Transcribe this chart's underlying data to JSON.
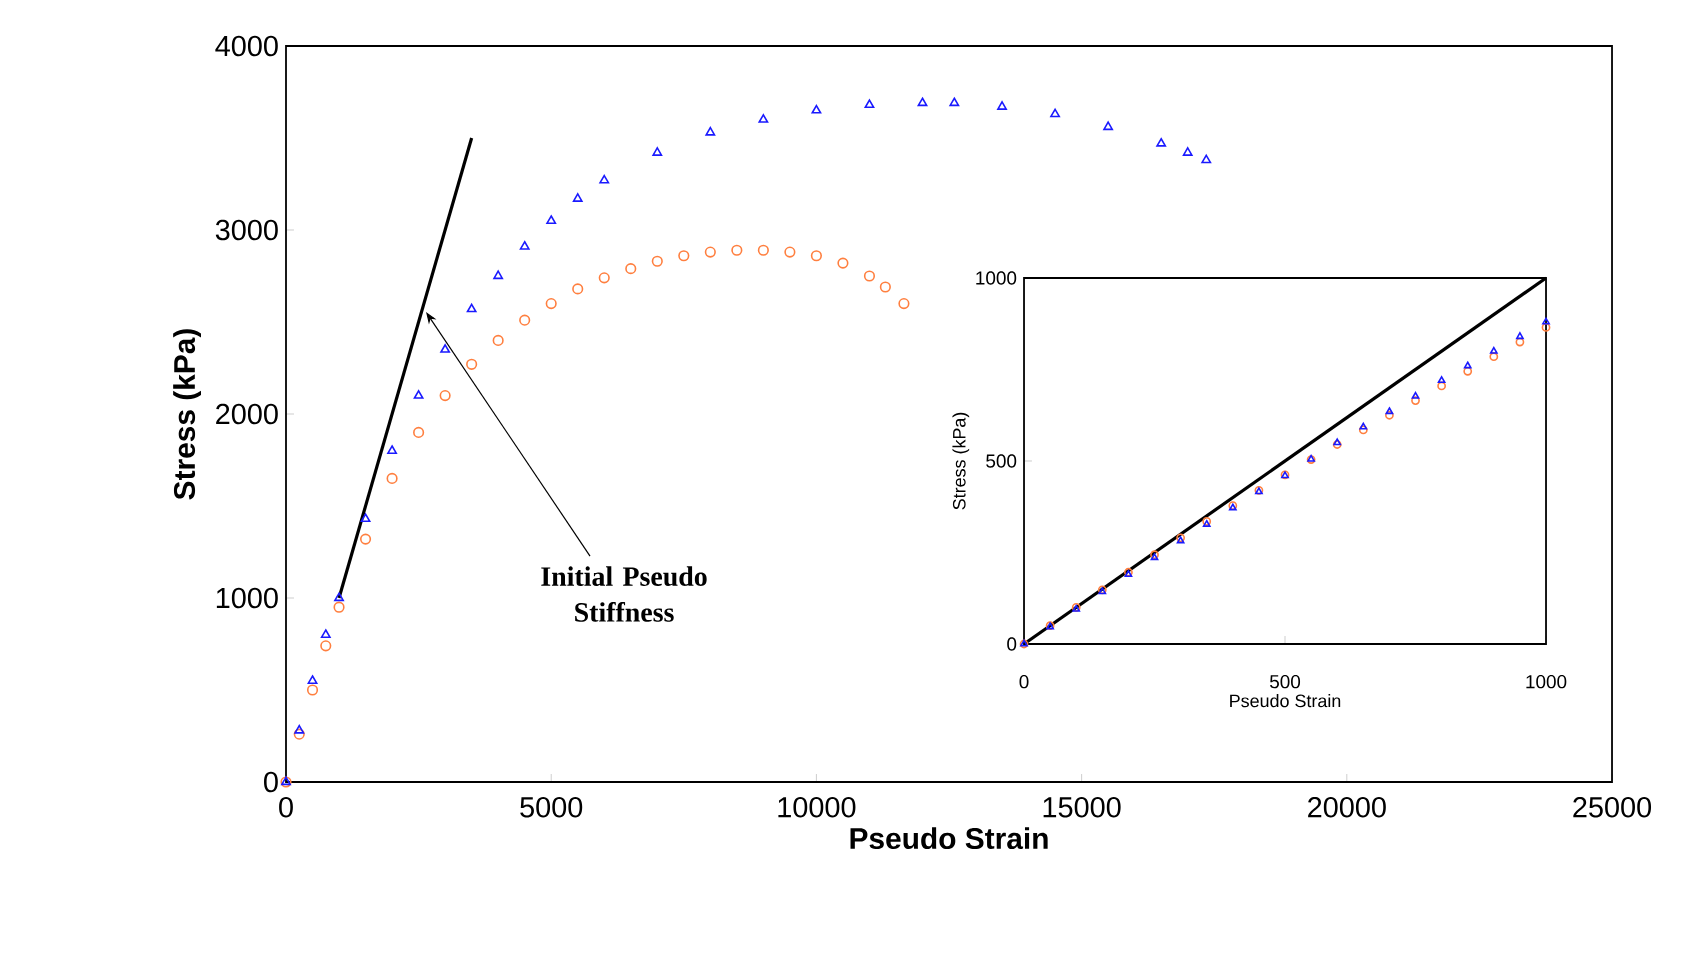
{
  "chart_data": [
    {
      "type": "scatter",
      "xlabel": "Pseudo Strain",
      "ylabel": "Stress (kPa)",
      "xlim": [
        0,
        25000
      ],
      "ylim": [
        0,
        4000
      ],
      "xticks": [
        0,
        5000,
        10000,
        15000,
        20000,
        25000
      ],
      "yticks": [
        0,
        1000,
        2000,
        3000,
        4000
      ],
      "annotations": [
        {
          "text": "Initial Pseudo Stiffness",
          "x": 2640,
          "y": 2554
        }
      ],
      "series": [
        {
          "type": "line",
          "color": "#000000",
          "marker": "none",
          "x": [
            1000,
            3500
          ],
          "values": [
            1000,
            3500
          ]
        },
        {
          "color": "#ff7f3f",
          "marker": "circle",
          "x": [
            0,
            250,
            500,
            750,
            1000,
            1500,
            2000,
            2500,
            3000,
            3500,
            4000,
            4500,
            5000,
            5500,
            6000,
            6500,
            7000,
            7500,
            8000,
            8500,
            9000,
            9500,
            10000,
            10500,
            11000,
            11300,
            11650
          ],
          "values": [
            0,
            260,
            500,
            740,
            950,
            1320,
            1650,
            1900,
            2100,
            2270,
            2400,
            2510,
            2600,
            2680,
            2740,
            2790,
            2830,
            2860,
            2880,
            2890,
            2890,
            2880,
            2860,
            2820,
            2750,
            2690,
            2600
          ]
        },
        {
          "color": "#1a1aff",
          "marker": "triangle",
          "x": [
            0,
            250,
            500,
            750,
            1000,
            1500,
            2000,
            2500,
            3000,
            3500,
            4000,
            4500,
            5000,
            5500,
            6000,
            7000,
            8000,
            9000,
            10000,
            11000,
            12000,
            12600,
            13500,
            14500,
            15500,
            16500,
            17000,
            17350
          ],
          "values": [
            0,
            280,
            550,
            800,
            1000,
            1430,
            1800,
            2100,
            2350,
            2570,
            2750,
            2910,
            3050,
            3170,
            3270,
            3420,
            3530,
            3600,
            3650,
            3680,
            3690,
            3690,
            3670,
            3630,
            3560,
            3470,
            3420,
            3380
          ]
        }
      ]
    },
    {
      "type": "scatter",
      "xlabel": "Pseudo Strain",
      "ylabel": "Stress (kPa)",
      "xlim": [
        0,
        1000
      ],
      "ylim": [
        0,
        1000
      ],
      "xticks": [
        0,
        500,
        1000
      ],
      "yticks": [
        0,
        500,
        1000
      ],
      "series": [
        {
          "type": "line",
          "color": "#000000",
          "marker": "none",
          "x": [
            0,
            1000
          ],
          "values": [
            0,
            1000
          ]
        },
        {
          "color": "#ff7f3f",
          "marker": "circle",
          "x": [
            0,
            50,
            100,
            150,
            200,
            250,
            300,
            350,
            400,
            450,
            500,
            550,
            600,
            650,
            700,
            750,
            800,
            850,
            900,
            950,
            1000
          ],
          "values": [
            0,
            50,
            100,
            148,
            196,
            244,
            290,
            335,
            378,
            420,
            462,
            504,
            545,
            585,
            625,
            665,
            705,
            745,
            785,
            825,
            865
          ]
        },
        {
          "color": "#1a1aff",
          "marker": "triangle",
          "x": [
            0,
            50,
            100,
            150,
            200,
            250,
            300,
            350,
            400,
            450,
            500,
            550,
            600,
            650,
            700,
            750,
            800,
            850,
            900,
            950,
            1000
          ],
          "values": [
            0,
            47,
            95,
            143,
            190,
            236,
            282,
            327,
            372,
            416,
            460,
            505,
            550,
            593,
            635,
            677,
            720,
            760,
            800,
            840,
            880
          ]
        }
      ]
    }
  ]
}
